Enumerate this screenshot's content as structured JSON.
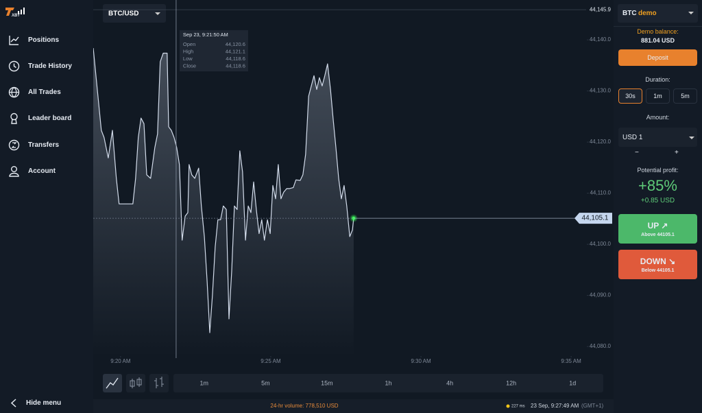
{
  "sidebar": {
    "logo": "XBT",
    "items": [
      "Positions",
      "Trade History",
      "All Trades",
      "Leader board",
      "Transfers",
      "Account"
    ],
    "hide_menu": "Hide menu"
  },
  "chart": {
    "type": "line",
    "pair": "BTC/USD",
    "color": "#d3dceb",
    "x": [
      19.09,
      19.36,
      19.45,
      19.59,
      19.73,
      19.86,
      19.95,
      20.23,
      20.41,
      20.5,
      20.59,
      20.68,
      20.78,
      20.87,
      21.0,
      21.14,
      21.23,
      21.32,
      21.42,
      21.55,
      21.6,
      21.69,
      21.78,
      21.87,
      21.96,
      22.05,
      22.15,
      22.24,
      22.28,
      22.37,
      22.47,
      22.6,
      22.69,
      22.79,
      22.88,
      22.97,
      23.06,
      23.15,
      23.24,
      23.33,
      23.42,
      23.52,
      23.61,
      23.7,
      23.79,
      23.88,
      23.97,
      24.06,
      24.16,
      24.25,
      24.34,
      24.43,
      24.52,
      24.61,
      24.7,
      24.79,
      24.89,
      24.98,
      25.07,
      25.16,
      25.25,
      25.34,
      25.43,
      25.53,
      25.62,
      25.75,
      25.84,
      25.98,
      26.07,
      26.16,
      26.26,
      26.35,
      26.44,
      26.53,
      26.62,
      26.71,
      26.8,
      26.89,
      26.99,
      27.08,
      27.17,
      27.26,
      27.35,
      27.44,
      27.53,
      27.63,
      27.72,
      27.76
    ],
    "values": [
      44138.4,
      44122.3,
      44120.9,
      44116.9,
      44122.3,
      44112.9,
      44107.9,
      44107.9,
      44107.9,
      44112.9,
      44120.9,
      44124.7,
      44123.6,
      44113.6,
      44112.9,
      44118.9,
      44121.6,
      44135.7,
      44137.4,
      44137.4,
      44123.0,
      44122.3,
      44120.9,
      44118.9,
      44115.6,
      44100.8,
      44105.5,
      44106.2,
      44115.6,
      44113.6,
      44112.9,
      44114.9,
      44107.5,
      44101.5,
      44092.8,
      44082.7,
      44090.1,
      44099.5,
      44104.8,
      44104.8,
      44107.5,
      44106.8,
      44085.4,
      44094.8,
      44107.5,
      44106.8,
      44118.3,
      44114.2,
      44100.8,
      44107.5,
      44106.2,
      44112.2,
      44106.8,
      44102.1,
      44104.8,
      44100.8,
      44104.8,
      44102.1,
      44111.5,
      44108.9,
      44115.6,
      44108.9,
      44110.2,
      44110.9,
      44110.9,
      44111.1,
      44112.6,
      44112.5,
      44113.6,
      44117.6,
      44129.0,
      44131.0,
      44133.0,
      44130.3,
      44132.6,
      44131.0,
      44133.0,
      44135.3,
      44130.3,
      44124.3,
      44118.9,
      44112.9,
      44108.9,
      44111.5,
      44107.5,
      44101.5,
      44102.8,
      44105.1
    ],
    "xlim": [
      19.09,
      35.5
    ],
    "ylim": [
      44078.0,
      44147.8
    ],
    "xticks": [
      {
        "value": 20,
        "label": "9:20 AM"
      },
      {
        "value": 25,
        "label": "9:25 AM"
      },
      {
        "value": 30,
        "label": "9:30 AM"
      },
      {
        "value": 35,
        "label": "9:35 AM"
      }
    ],
    "yticks": [
      {
        "value": 44080,
        "label": "44,080.0"
      },
      {
        "value": 44090,
        "label": "44,090.0"
      },
      {
        "value": 44100,
        "label": "44,100.0"
      },
      {
        "value": 44110,
        "label": "44,110.0"
      },
      {
        "value": 44120,
        "label": "44,120.0"
      },
      {
        "value": 44130,
        "label": "44,130.0"
      },
      {
        "value": 44140,
        "label": "44,140.0"
      }
    ],
    "high_line": {
      "value": 44145.9,
      "label": "44,145.9"
    },
    "current_price": {
      "value": 44105.1,
      "label": "44,105.1"
    },
    "crosshair": {
      "x": 21.85,
      "time": "Sep 23, 9:21:50 AM",
      "fields": [
        {
          "name": "Open",
          "value": "44,120.6"
        },
        {
          "name": "High",
          "value": "44,121.1"
        },
        {
          "name": "Low",
          "value": "44,118.6"
        },
        {
          "name": "Close",
          "value": "44,118.6"
        }
      ]
    },
    "timeframes": [
      "1m",
      "5m",
      "15m",
      "1h",
      "4h",
      "12h",
      "1d"
    ]
  },
  "status": {
    "volume": "24-hr volume: 778,510 USD",
    "latency": "227 ms",
    "clock": "23 Sep, 9:27:49 AM",
    "timezone": "(GMT+1)"
  },
  "panel": {
    "asset": "BTC",
    "account": "demo",
    "balance_label": "Demo balance:",
    "balance": "881.04 USD",
    "deposit": "Deposit",
    "duration_label": "Duration:",
    "durations": [
      "30s",
      "1m",
      "5m"
    ],
    "amount_label": "Amount:",
    "amount": "USD 1",
    "minus": "−",
    "plus": "+",
    "profit_label": "Potential profit:",
    "profit_percent": "+85%",
    "profit_amount": "+0.85 USD",
    "up": "UP ↗",
    "up_sub": "Above 44105.1",
    "down": "DOWN ↘",
    "down_sub": "Below 44105.1"
  }
}
